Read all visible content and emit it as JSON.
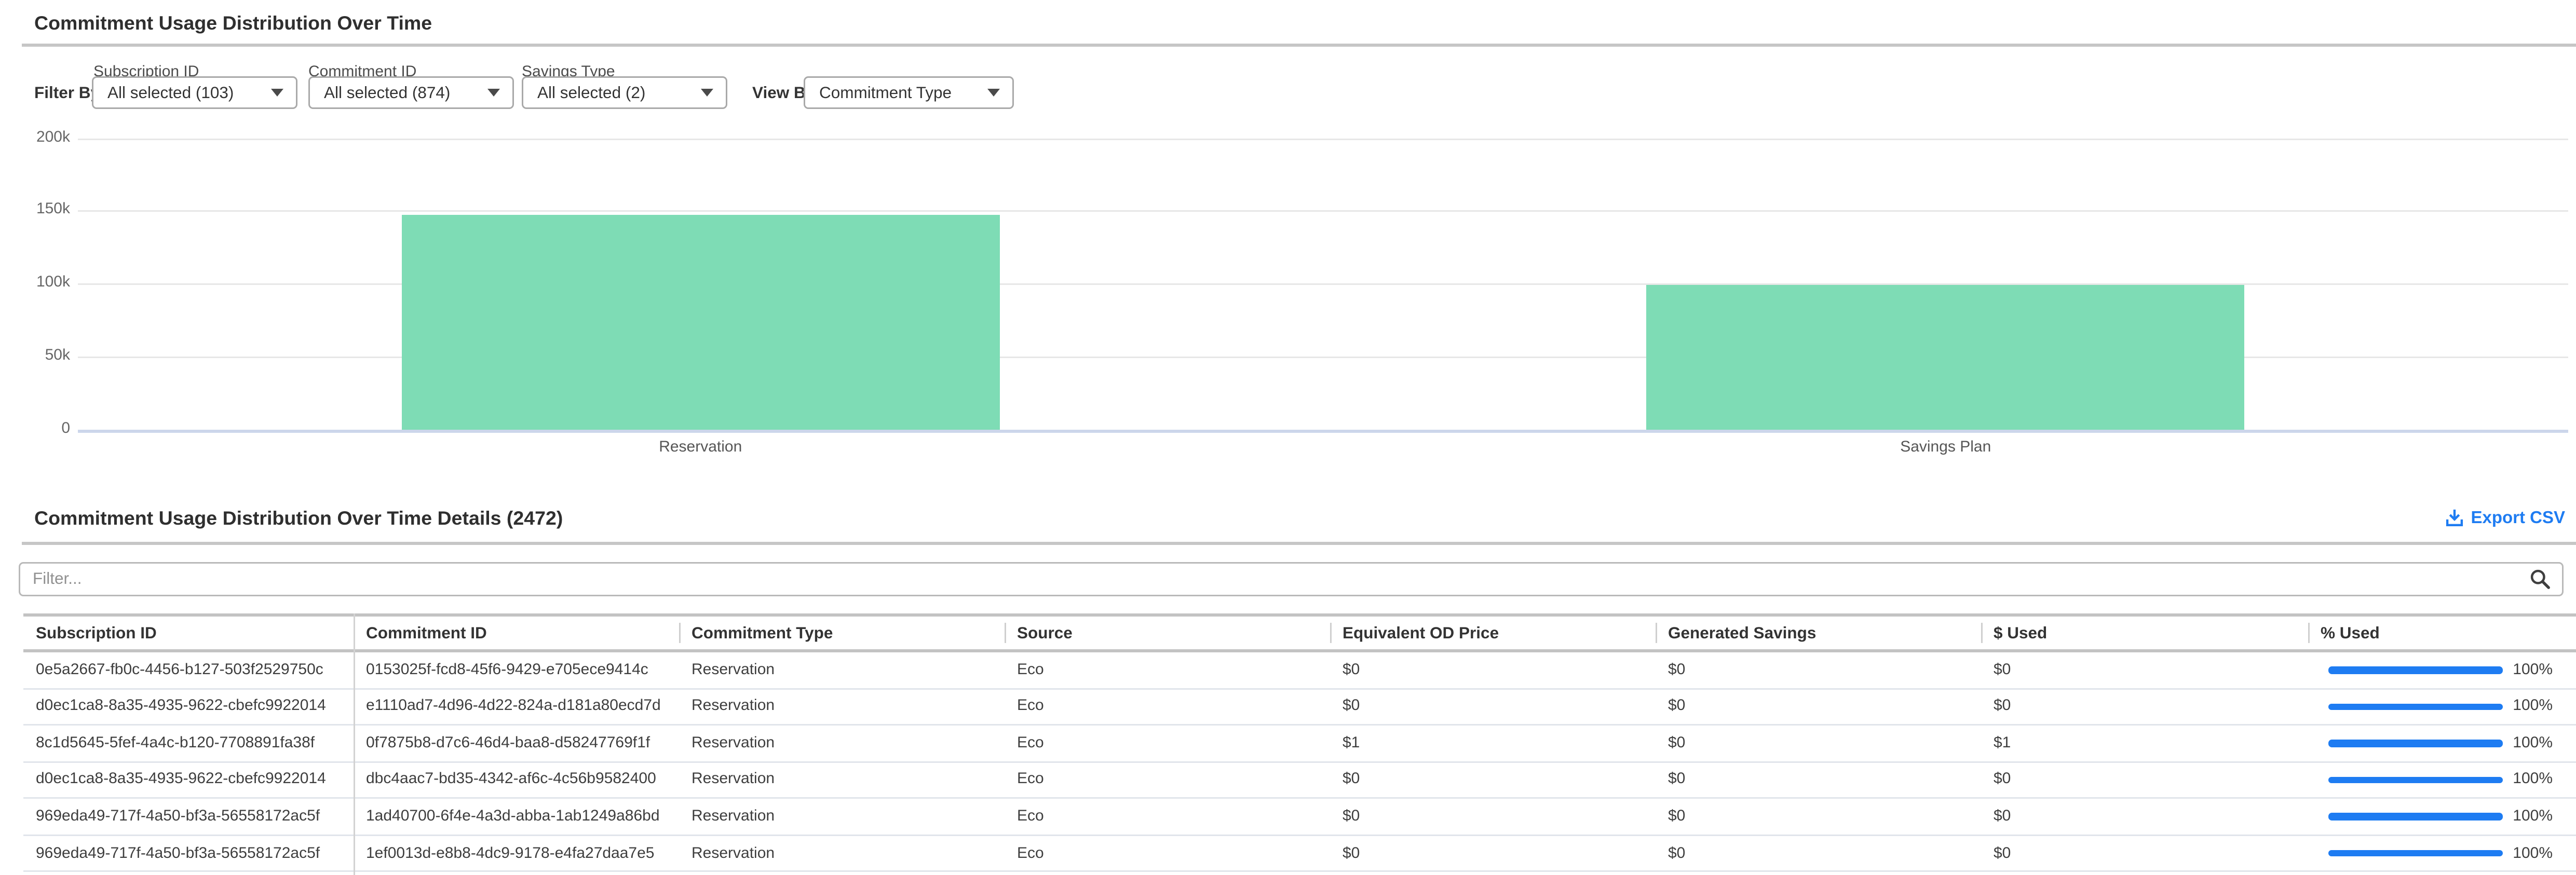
{
  "page": {
    "title": "Commitment Usage Distribution Over Time"
  },
  "filters": {
    "filter_by_label": "Filter By:",
    "view_by_label": "View By:",
    "dropdowns": [
      {
        "label": "Subscription ID",
        "value": "All selected (103)"
      },
      {
        "label": "Commitment ID",
        "value": "All selected (874)"
      },
      {
        "label": "Savings Type",
        "value": "All selected (2)"
      }
    ],
    "view_by": {
      "value": "Commitment Type"
    }
  },
  "chart_data": {
    "type": "bar",
    "title": "",
    "xlabel": "",
    "ylabel": "",
    "categories": [
      "Reservation",
      "Savings Plan"
    ],
    "values": [
      147500,
      99200
    ],
    "ylim": [
      0,
      200000
    ],
    "yticks": [
      {
        "value": 0,
        "label": "0"
      },
      {
        "value": 50000,
        "label": "50k"
      },
      {
        "value": 100000,
        "label": "100k"
      },
      {
        "value": 150000,
        "label": "150k"
      },
      {
        "value": 200000,
        "label": "200k"
      }
    ],
    "grid": true,
    "legend": false,
    "bar_color": "#7edcb5"
  },
  "details": {
    "title": "Commitment Usage Distribution Over Time Details (2472)",
    "export_label": "Export CSV",
    "filter_placeholder": "Filter...",
    "columns": [
      "Subscription ID",
      "Commitment ID",
      "Commitment Type",
      "Source",
      "Equivalent OD Price",
      "Generated Savings",
      "$ Used",
      "% Used"
    ],
    "rows": [
      {
        "subscription_id": "0e5a2667-fb0c-4456-b127-503f2529750c",
        "commitment_id": "0153025f-fcd8-45f6-9429-e705ece9414c",
        "commitment_type": "Reservation",
        "source": "Eco",
        "equivalent_od_price": "$0",
        "generated_savings": "$0",
        "used": "$0",
        "pct_used": "100%",
        "pct_value": 100
      },
      {
        "subscription_id": "d0ec1ca8-8a35-4935-9622-cbefc9922014",
        "commitment_id": "e1110ad7-4d96-4d22-824a-d181a80ecd7d",
        "commitment_type": "Reservation",
        "source": "Eco",
        "equivalent_od_price": "$0",
        "generated_savings": "$0",
        "used": "$0",
        "pct_used": "100%",
        "pct_value": 100
      },
      {
        "subscription_id": "8c1d5645-5fef-4a4c-b120-7708891fa38f",
        "commitment_id": "0f7875b8-d7c6-46d4-baa8-d58247769f1f",
        "commitment_type": "Reservation",
        "source": "Eco",
        "equivalent_od_price": "$1",
        "generated_savings": "$0",
        "used": "$1",
        "pct_used": "100%",
        "pct_value": 100
      },
      {
        "subscription_id": "d0ec1ca8-8a35-4935-9622-cbefc9922014",
        "commitment_id": "dbc4aac7-bd35-4342-af6c-4c56b9582400",
        "commitment_type": "Reservation",
        "source": "Eco",
        "equivalent_od_price": "$0",
        "generated_savings": "$0",
        "used": "$0",
        "pct_used": "100%",
        "pct_value": 100
      },
      {
        "subscription_id": "969eda49-717f-4a50-bf3a-56558172ac5f",
        "commitment_id": "1ad40700-6f4e-4a3d-abba-1ab1249a86bd",
        "commitment_type": "Reservation",
        "source": "Eco",
        "equivalent_od_price": "$0",
        "generated_savings": "$0",
        "used": "$0",
        "pct_used": "100%",
        "pct_value": 100
      },
      {
        "subscription_id": "969eda49-717f-4a50-bf3a-56558172ac5f",
        "commitment_id": "1ef0013d-e8b8-4dc9-9178-e4fa27daa7e5",
        "commitment_type": "Reservation",
        "source": "Eco",
        "equivalent_od_price": "$0",
        "generated_savings": "$0",
        "used": "$0",
        "pct_used": "100%",
        "pct_value": 100
      }
    ]
  },
  "icons": {
    "export": "download-icon",
    "search": "search-icon",
    "dropdown": "chevron-down-icon"
  },
  "colors": {
    "accent_blue": "#1e7cf2",
    "bar_green": "#7edcb5",
    "zero_axis": "#ccd6eb",
    "grid": "#e7e7e7"
  }
}
